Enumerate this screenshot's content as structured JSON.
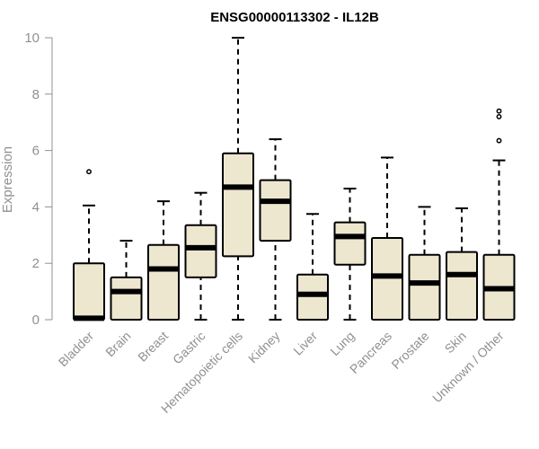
{
  "chart_data": {
    "type": "boxplot",
    "title": "ENSG00000113302 - IL12B",
    "xlabel": "",
    "ylabel": "Expression",
    "ylim": [
      0,
      10
    ],
    "yticks": [
      0,
      2,
      4,
      6,
      8,
      10
    ],
    "grid": false,
    "legend": "none",
    "colors": {
      "box_fill": "#ede7d0",
      "box_stroke": "#000000",
      "axis": "#909090"
    },
    "categories": [
      "Bladder",
      "Brain",
      "Breast",
      "Gastric",
      "Hematopoietic cells",
      "Kidney",
      "Liver",
      "Lung",
      "Pancreas",
      "Prostate",
      "Skin",
      "Unknown / Other"
    ],
    "boxes": [
      {
        "min": 0,
        "q1": 0,
        "median": 0.05,
        "q3": 2.0,
        "max": 4.05,
        "outliers": [
          5.25
        ]
      },
      {
        "min": 0,
        "q1": 0,
        "median": 1.0,
        "q3": 1.5,
        "max": 2.8,
        "outliers": []
      },
      {
        "min": 0,
        "q1": 0,
        "median": 1.8,
        "q3": 2.65,
        "max": 4.2,
        "outliers": []
      },
      {
        "min": 0,
        "q1": 1.5,
        "median": 2.55,
        "q3": 3.35,
        "max": 4.5,
        "outliers": []
      },
      {
        "min": 0,
        "q1": 2.25,
        "median": 4.7,
        "q3": 5.9,
        "max": 10.0,
        "outliers": []
      },
      {
        "min": 0,
        "q1": 2.8,
        "median": 4.2,
        "q3": 4.95,
        "max": 6.4,
        "outliers": []
      },
      {
        "min": 0,
        "q1": 0,
        "median": 0.9,
        "q3": 1.6,
        "max": 3.75,
        "outliers": []
      },
      {
        "min": 0,
        "q1": 1.95,
        "median": 2.95,
        "q3": 3.45,
        "max": 4.65,
        "outliers": []
      },
      {
        "min": 0,
        "q1": 0,
        "median": 1.55,
        "q3": 2.9,
        "max": 5.75,
        "outliers": []
      },
      {
        "min": 0,
        "q1": 0,
        "median": 1.3,
        "q3": 2.3,
        "max": 4.0,
        "outliers": []
      },
      {
        "min": 0,
        "q1": 0,
        "median": 1.6,
        "q3": 2.4,
        "max": 3.95,
        "outliers": []
      },
      {
        "min": 0,
        "q1": 0,
        "median": 1.1,
        "q3": 2.3,
        "max": 5.65,
        "outliers": [
          6.35,
          7.2,
          7.4
        ]
      }
    ]
  }
}
